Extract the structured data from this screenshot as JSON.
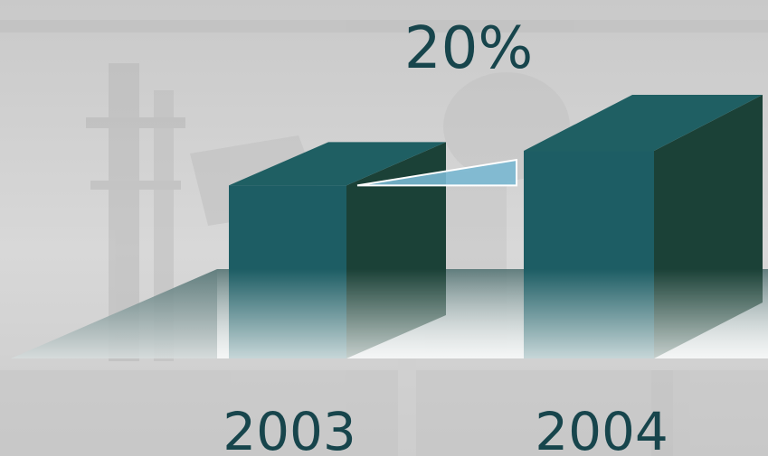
{
  "chart_data": {
    "type": "bar",
    "style": "3d-isometric",
    "categories": [
      "2003",
      "2004"
    ],
    "values": [
      100,
      120
    ],
    "annotation": "20%",
    "ylim": [
      0,
      160
    ],
    "grid": false,
    "legend": "none",
    "colors": {
      "front": "#1d5d64",
      "side": "#1b4137",
      "top": "#1f5f63",
      "growth_wedge": "#7ab8d2",
      "labels": "#17454c"
    }
  }
}
